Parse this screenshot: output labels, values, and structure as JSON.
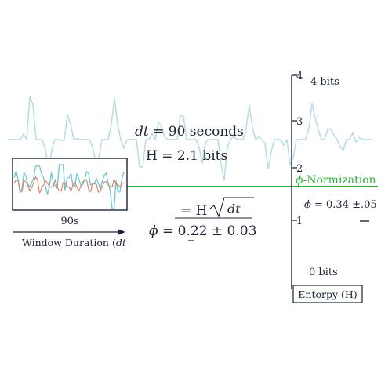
{
  "annotations": {
    "dt_line": {
      "var": "dt",
      "rest": " = 90 seconds"
    },
    "entropy_line": "H = 2.1 bits",
    "formula": {
      "left": "= H",
      "radicand": "dt"
    },
    "phi_left": {
      "symbol": "ϕ",
      "rest": " = 0.22 ± 0.03"
    },
    "phi_right": {
      "symbol": "ϕ",
      "rest": " = 0.34 ±.05"
    },
    "normalization": {
      "symbol": "ϕ",
      "rest": "-Normization"
    }
  },
  "window": {
    "duration_label": "90s",
    "axis_label": "Window Duration (",
    "axis_label_var": "dt"
  },
  "entropy_axis": {
    "ticks": [
      {
        "value": 4,
        "label": "4"
      },
      {
        "value": 3,
        "label": "3"
      },
      {
        "value": 2,
        "label": "2"
      },
      {
        "value": 1,
        "label": "1"
      }
    ],
    "top_label": "4 bits",
    "bottom_label": "0 bits",
    "title": "Entorpy (H)",
    "normalization_level": 1.5
  },
  "colors": {
    "axis": "#1c2436",
    "signal_light": "#b9dbe4",
    "signal_main": "#6fc7d3",
    "signal_secondary": "#d48a6e",
    "normalization_line": "#2fae3a"
  }
}
